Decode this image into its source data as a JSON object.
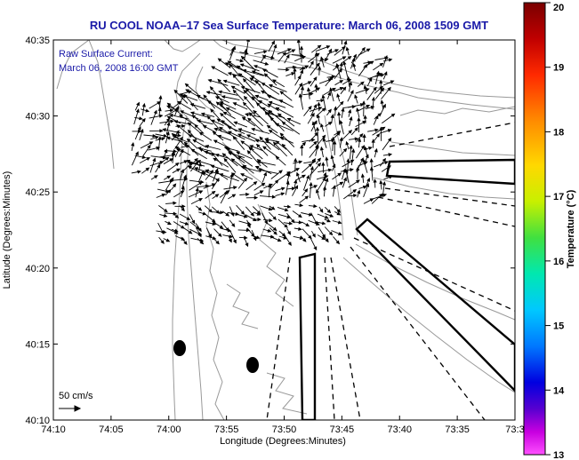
{
  "title": "RU COOL  NOAA–17  Sea Surface Temperature:  March 06, 2008 1509 GMT",
  "annotation": {
    "line1": "Raw Surface Current:",
    "line2": "March 06, 2008 16:00 GMT"
  },
  "xlabel": "Longitude (Degrees:Minutes)",
  "ylabel": "Latitude (Degrees:Minutes)",
  "x_ticks": [
    "74:10",
    "74:05",
    "74:00",
    "73:55",
    "73:50",
    "73:45",
    "73:40",
    "73:35",
    "73:3"
  ],
  "y_ticks": [
    "40:35",
    "40:30",
    "40:25",
    "40:20",
    "40:15",
    "40:10"
  ],
  "scale_label": "50 cm/s",
  "colorbar": {
    "label": "Temperature (°C)",
    "ticks": [
      "20",
      "19",
      "18",
      "17",
      "16",
      "15",
      "14",
      "13"
    ],
    "min": 13,
    "max": 20
  },
  "colors": {
    "title": "#1a1aa8",
    "contour": "#999999",
    "vectors": "#000000"
  }
}
